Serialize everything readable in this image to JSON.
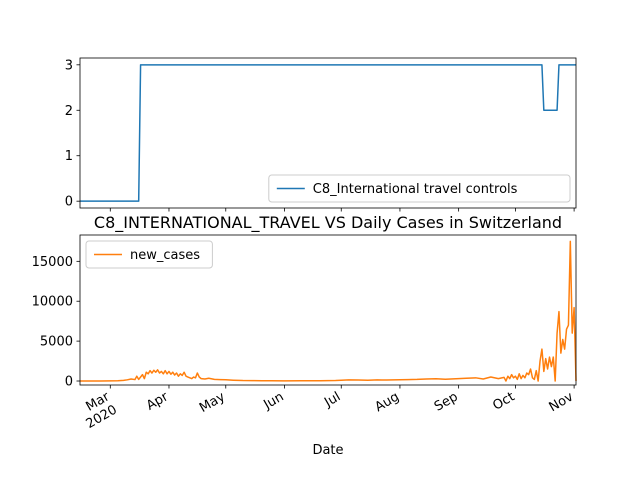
{
  "chart_data": [
    {
      "type": "line",
      "title": "",
      "xlabel": "",
      "ylabel": "",
      "xlim": [
        "2020-02-14",
        "2020-11-02"
      ],
      "ylim": [
        -0.15,
        3.15
      ],
      "yticks": [
        0,
        1,
        2,
        3
      ],
      "ytick_labels": [
        "0",
        "1",
        "2",
        "3"
      ],
      "grid": false,
      "legend": "lower-right",
      "series": [
        {
          "name": "C8_International travel controls",
          "color": "#1f77b4",
          "points": [
            [
              "2020-02-14",
              0
            ],
            [
              "2020-03-16",
              0
            ],
            [
              "2020-03-17",
              3
            ],
            [
              "2020-10-15",
              3
            ],
            [
              "2020-10-16",
              2
            ],
            [
              "2020-10-23",
              2
            ],
            [
              "2020-10-24",
              3
            ],
            [
              "2020-11-02",
              3
            ]
          ]
        }
      ]
    },
    {
      "type": "line",
      "title": "C8_INTERNATIONAL_TRAVEL VS Daily Cases in Switzerland",
      "xlabel": "Date",
      "ylabel": "",
      "xlim": [
        "2020-02-14",
        "2020-11-02"
      ],
      "ylim": [
        -500,
        18300
      ],
      "yticks": [
        0,
        5000,
        10000,
        15000
      ],
      "ytick_labels": [
        "0",
        "5000",
        "10000",
        "15000"
      ],
      "xticks": [
        "2020-03-01",
        "2020-04-01",
        "2020-05-01",
        "2020-06-01",
        "2020-07-01",
        "2020-08-01",
        "2020-09-01",
        "2020-10-01",
        "2020-11-01"
      ],
      "xtick_labels": [
        "Mar\n2020",
        "Apr",
        "May",
        "Jun",
        "Jul",
        "Aug",
        "Sep",
        "Oct",
        "Nov"
      ],
      "grid": false,
      "legend": "upper-left",
      "series": [
        {
          "name": "new_cases",
          "color": "#ff7f0e",
          "points": [
            [
              "2020-02-14",
              0
            ],
            [
              "2020-02-25",
              0
            ],
            [
              "2020-03-01",
              20
            ],
            [
              "2020-03-05",
              40
            ],
            [
              "2020-03-08",
              80
            ],
            [
              "2020-03-10",
              150
            ],
            [
              "2020-03-12",
              250
            ],
            [
              "2020-03-14",
              180
            ],
            [
              "2020-03-15",
              600
            ],
            [
              "2020-03-16",
              200
            ],
            [
              "2020-03-18",
              800
            ],
            [
              "2020-03-19",
              300
            ],
            [
              "2020-03-20",
              1100
            ],
            [
              "2020-03-21",
              900
            ],
            [
              "2020-03-22",
              1300
            ],
            [
              "2020-03-23",
              1000
            ],
            [
              "2020-03-24",
              1350
            ],
            [
              "2020-03-25",
              1100
            ],
            [
              "2020-03-26",
              1400
            ],
            [
              "2020-03-27",
              1000
            ],
            [
              "2020-03-28",
              1200
            ],
            [
              "2020-03-29",
              900
            ],
            [
              "2020-03-30",
              1300
            ],
            [
              "2020-03-31",
              900
            ],
            [
              "2020-04-01",
              1200
            ],
            [
              "2020-04-02",
              850
            ],
            [
              "2020-04-03",
              1100
            ],
            [
              "2020-04-04",
              750
            ],
            [
              "2020-04-05",
              1000
            ],
            [
              "2020-04-06",
              600
            ],
            [
              "2020-04-07",
              900
            ],
            [
              "2020-04-08",
              700
            ],
            [
              "2020-04-09",
              1100
            ],
            [
              "2020-04-10",
              600
            ],
            [
              "2020-04-11",
              500
            ],
            [
              "2020-04-12",
              400
            ],
            [
              "2020-04-13",
              300
            ],
            [
              "2020-04-14",
              500
            ],
            [
              "2020-04-15",
              400
            ],
            [
              "2020-04-16",
              1000
            ],
            [
              "2020-04-17",
              500
            ],
            [
              "2020-04-18",
              300
            ],
            [
              "2020-04-20",
              250
            ],
            [
              "2020-04-22",
              350
            ],
            [
              "2020-04-25",
              200
            ],
            [
              "2020-04-28",
              180
            ],
            [
              "2020-05-01",
              150
            ],
            [
              "2020-05-05",
              100
            ],
            [
              "2020-05-10",
              60
            ],
            [
              "2020-05-15",
              50
            ],
            [
              "2020-05-20",
              40
            ],
            [
              "2020-05-25",
              30
            ],
            [
              "2020-06-01",
              20
            ],
            [
              "2020-06-10",
              25
            ],
            [
              "2020-06-20",
              35
            ],
            [
              "2020-06-28",
              60
            ],
            [
              "2020-07-01",
              100
            ],
            [
              "2020-07-05",
              140
            ],
            [
              "2020-07-10",
              120
            ],
            [
              "2020-07-15",
              90
            ],
            [
              "2020-07-20",
              140
            ],
            [
              "2020-07-25",
              120
            ],
            [
              "2020-08-01",
              150
            ],
            [
              "2020-08-05",
              180
            ],
            [
              "2020-08-10",
              200
            ],
            [
              "2020-08-15",
              250
            ],
            [
              "2020-08-20",
              280
            ],
            [
              "2020-08-25",
              220
            ],
            [
              "2020-09-01",
              300
            ],
            [
              "2020-09-05",
              350
            ],
            [
              "2020-09-10",
              400
            ],
            [
              "2020-09-14",
              250
            ],
            [
              "2020-09-18",
              500
            ],
            [
              "2020-09-22",
              300
            ],
            [
              "2020-09-25",
              450
            ],
            [
              "2020-09-26",
              0
            ],
            [
              "2020-09-27",
              600
            ],
            [
              "2020-09-28",
              300
            ],
            [
              "2020-09-29",
              800
            ],
            [
              "2020-09-30",
              400
            ],
            [
              "2020-10-01",
              600
            ],
            [
              "2020-10-02",
              200
            ],
            [
              "2020-10-03",
              900
            ],
            [
              "2020-10-04",
              300
            ],
            [
              "2020-10-05",
              700
            ],
            [
              "2020-10-06",
              400
            ],
            [
              "2020-10-07",
              1000
            ],
            [
              "2020-10-08",
              800
            ],
            [
              "2020-10-09",
              1500
            ],
            [
              "2020-10-10",
              400
            ],
            [
              "2020-10-11",
              200
            ],
            [
              "2020-10-12",
              1300
            ],
            [
              "2020-10-13",
              0
            ],
            [
              "2020-10-14",
              2500
            ],
            [
              "2020-10-15",
              4000
            ],
            [
              "2020-10-16",
              1200
            ],
            [
              "2020-10-17",
              2800
            ],
            [
              "2020-10-18",
              1500
            ],
            [
              "2020-10-19",
              3000
            ],
            [
              "2020-10-20",
              1800
            ],
            [
              "2020-10-21",
              3000
            ],
            [
              "2020-10-22",
              0
            ],
            [
              "2020-10-23",
              6000
            ],
            [
              "2020-10-24",
              8700
            ],
            [
              "2020-10-25",
              3500
            ],
            [
              "2020-10-26",
              5200
            ],
            [
              "2020-10-27",
              4000
            ],
            [
              "2020-10-28",
              6500
            ],
            [
              "2020-10-29",
              7000
            ],
            [
              "2020-10-30",
              17500
            ],
            [
              "2020-10-31",
              6000
            ],
            [
              "2020-11-01",
              9200
            ],
            [
              "2020-11-02",
              0
            ]
          ]
        }
      ]
    }
  ]
}
